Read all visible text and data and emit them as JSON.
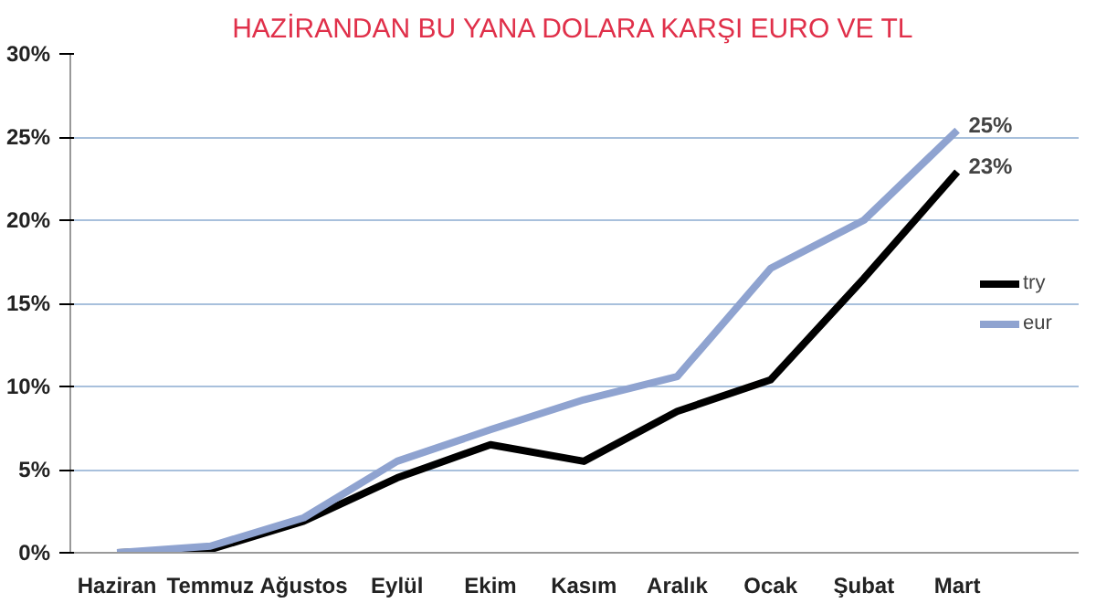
{
  "chart_data": {
    "type": "line",
    "title": "HAZİRANDAN BU YANA DOLARA KARŞI EURO VE TL",
    "categories": [
      "Haziran",
      "Temmuz",
      "Ağustos",
      "Eylül",
      "Ekim",
      "Kasım",
      "Aralık",
      "Ocak",
      "Şubat",
      "Mart"
    ],
    "series": [
      {
        "name": "try",
        "color": "#000000",
        "values": [
          0,
          0.2,
          1.9,
          4.5,
          6.5,
          5.5,
          8.5,
          10.4,
          16.5,
          22.9
        ]
      },
      {
        "name": "eur",
        "color": "#8fa3d0",
        "values": [
          0,
          0.4,
          2.1,
          5.5,
          7.4,
          9.2,
          10.6,
          17.1,
          20.0,
          25.4
        ]
      }
    ],
    "ylim": [
      0,
      30
    ],
    "yticks": [
      {
        "value": 0,
        "label": "0%"
      },
      {
        "value": 5,
        "label": "5%"
      },
      {
        "value": 10,
        "label": "10%"
      },
      {
        "value": 15,
        "label": "15%"
      },
      {
        "value": 20,
        "label": "20%"
      },
      {
        "value": 25,
        "label": "25%"
      },
      {
        "value": 30,
        "label": "30%"
      }
    ],
    "annotations": [
      {
        "text": "25%",
        "x": "Mart",
        "y": 25.4
      },
      {
        "text": "23%",
        "x": "Mart",
        "y": 22.9
      }
    ],
    "grid": "y",
    "legend": "right",
    "marker": "none",
    "line_style": "solid"
  }
}
